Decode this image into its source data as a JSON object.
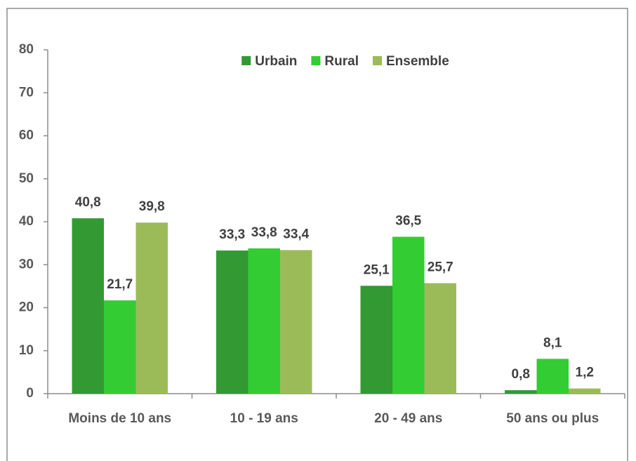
{
  "chart_data": {
    "type": "bar",
    "categories": [
      "Moins de 10 ans",
      "10 - 19 ans",
      "20 - 49 ans",
      "50 ans ou plus"
    ],
    "series": [
      {
        "name": "Urbain",
        "color": "#339933",
        "values": [
          40.8,
          33.3,
          25.1,
          0.8
        ],
        "value_labels": [
          "40,8",
          "33,3",
          "25,1",
          "0,8"
        ]
      },
      {
        "name": "Rural",
        "color": "#33cc33",
        "values": [
          21.7,
          33.8,
          36.5,
          8.1
        ],
        "value_labels": [
          "21,7",
          "33,8",
          "36,5",
          "8,1"
        ]
      },
      {
        "name": "Ensemble",
        "color": "#9bbb59",
        "values": [
          39.8,
          33.4,
          25.7,
          1.2
        ],
        "value_labels": [
          "39,8",
          "33,4",
          "25,7",
          "1,2"
        ]
      }
    ],
    "ylim": [
      0,
      80
    ],
    "yticks": [
      0,
      10,
      20,
      30,
      40,
      50,
      60,
      70,
      80
    ],
    "grid": false,
    "legend": "top"
  }
}
